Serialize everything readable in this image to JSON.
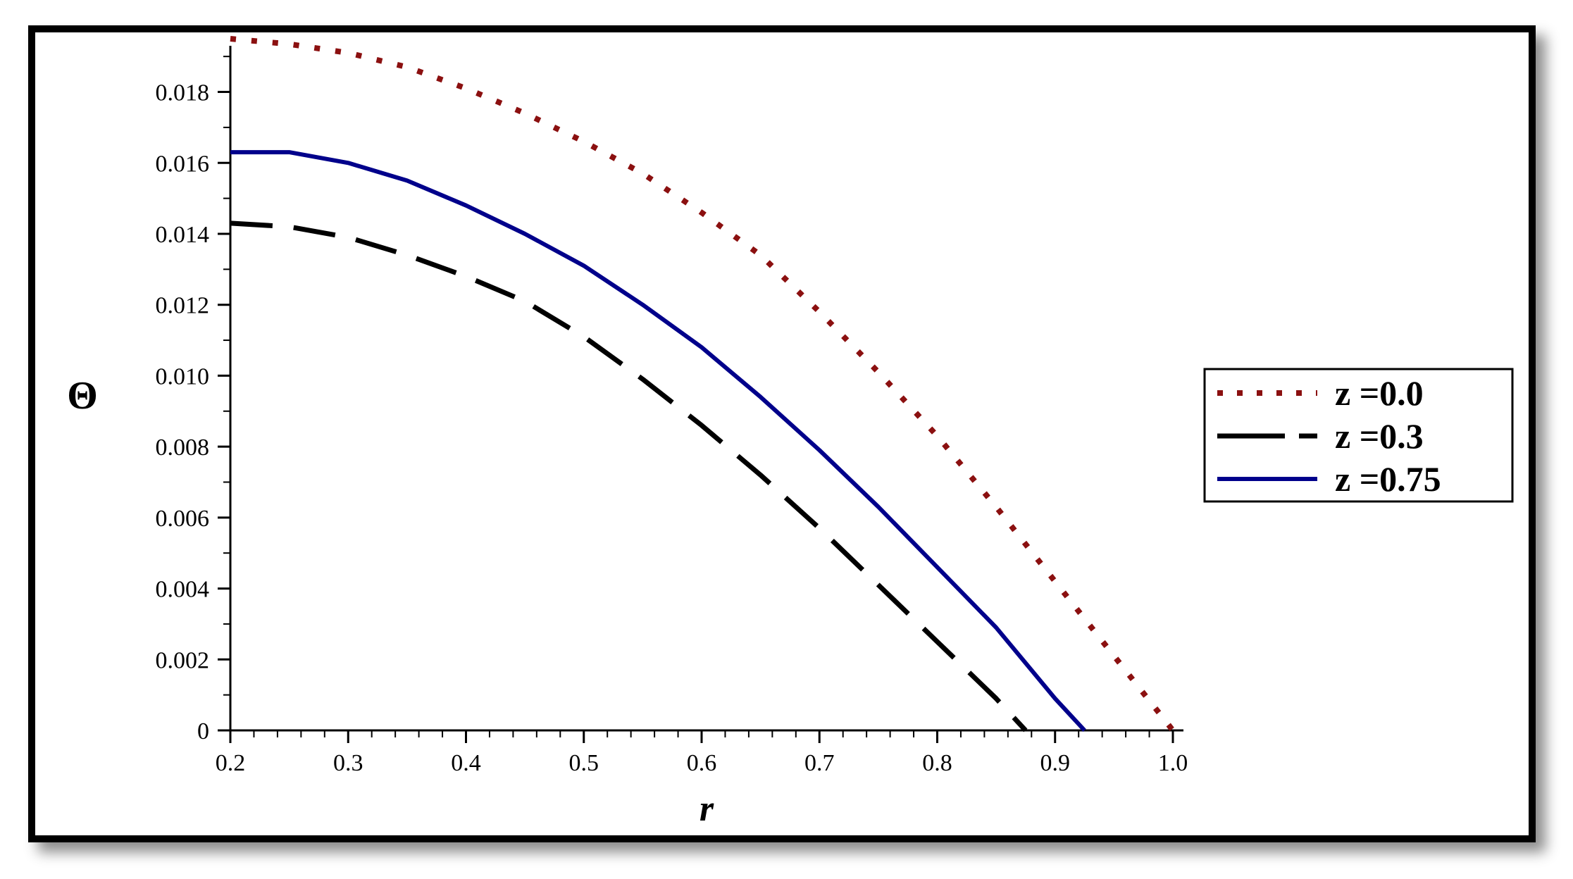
{
  "chart_data": {
    "type": "line",
    "title": "",
    "xlabel": "r",
    "ylabel": "Θ",
    "xlim": [
      0.2,
      1.0
    ],
    "ylim": [
      0,
      0.0195
    ],
    "grid": false,
    "legend_position": "right",
    "x_ticks": [
      "0.2",
      "0.3",
      "0.4",
      "0.5",
      "0.6",
      "0.7",
      "0.8",
      "0.9",
      "1.0"
    ],
    "y_ticks": [
      "0",
      "0.002",
      "0.004",
      "0.006",
      "0.008",
      "0.010",
      "0.012",
      "0.014",
      "0.016",
      "0.018"
    ],
    "series": [
      {
        "name": "z =0.0",
        "color": "#8B1010",
        "style": "dotted",
        "x": [
          0.2,
          0.25,
          0.3,
          0.35,
          0.4,
          0.45,
          0.5,
          0.55,
          0.6,
          0.65,
          0.7,
          0.75,
          0.8,
          0.85,
          0.9,
          0.95,
          1.0
        ],
        "y": [
          0.0195,
          0.01935,
          0.0191,
          0.0187,
          0.0181,
          0.0174,
          0.0166,
          0.0157,
          0.0146,
          0.0134,
          0.0118,
          0.0101,
          0.0083,
          0.0063,
          0.0042,
          0.0021,
          0.0
        ]
      },
      {
        "name": "z =0.3",
        "color": "#000000",
        "style": "dashed",
        "x": [
          0.2,
          0.25,
          0.3,
          0.35,
          0.4,
          0.45,
          0.5,
          0.55,
          0.6,
          0.65,
          0.7,
          0.75,
          0.8,
          0.85,
          0.875
        ],
        "y": [
          0.0143,
          0.0142,
          0.0139,
          0.0134,
          0.0128,
          0.0121,
          0.0111,
          0.0099,
          0.0086,
          0.0072,
          0.0057,
          0.0041,
          0.0025,
          0.0009,
          0.0
        ]
      },
      {
        "name": "z =0.75",
        "color": "#00008B",
        "style": "solid",
        "x": [
          0.2,
          0.25,
          0.3,
          0.35,
          0.4,
          0.45,
          0.5,
          0.55,
          0.6,
          0.65,
          0.7,
          0.75,
          0.8,
          0.85,
          0.9,
          0.925
        ],
        "y": [
          0.0163,
          0.0163,
          0.016,
          0.0155,
          0.0148,
          0.014,
          0.0131,
          0.012,
          0.0108,
          0.0094,
          0.0079,
          0.0063,
          0.0046,
          0.0029,
          0.0009,
          0.0
        ]
      }
    ]
  }
}
